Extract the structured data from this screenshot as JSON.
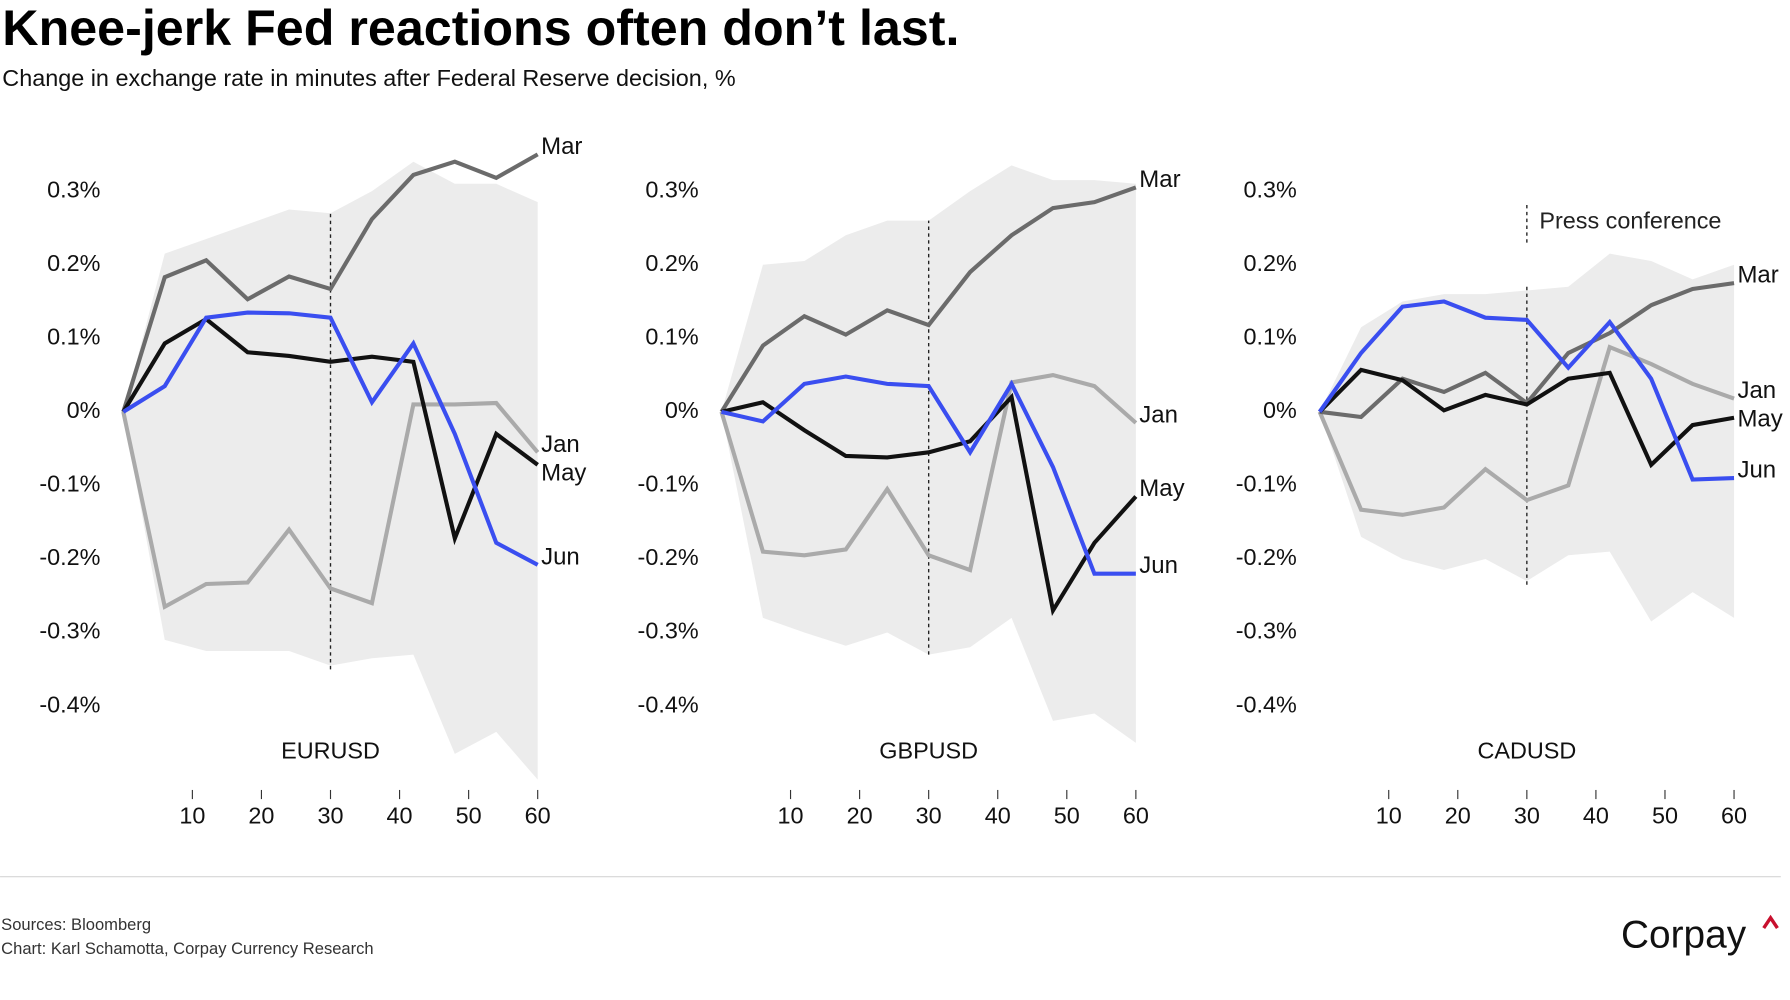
{
  "title": "Knee-jerk Fed reactions often don’t last.",
  "subtitle": "Change in exchange rate in minutes after Federal Reserve decision, %",
  "sources": "Sources: Bloomberg",
  "credit": "Chart: Karl Schamotta, Corpay Currency Research",
  "logo": "Corpay",
  "chart_data": [
    {
      "type": "line",
      "title": "EURUSD",
      "x": [
        0,
        6,
        12,
        18,
        24,
        30,
        36,
        42,
        48,
        54,
        60
      ],
      "xlim": [
        0,
        60
      ],
      "xticks": [
        10,
        20,
        30,
        40,
        50,
        60
      ],
      "ylim": [
        -0.5,
        0.4
      ],
      "yticks": [
        {
          "value": -0.4,
          "label": "-0.4%"
        },
        {
          "value": -0.3,
          "label": "-0.3%"
        },
        {
          "value": -0.2,
          "label": "-0.2%"
        },
        {
          "value": -0.1,
          "label": "-0.1%"
        },
        {
          "value": 0,
          "label": "0%"
        },
        {
          "value": 0.1,
          "label": "0.1%"
        },
        {
          "value": 0.2,
          "label": "0.2%"
        },
        {
          "value": 0.3,
          "label": "0.3%"
        }
      ],
      "band": {
        "color": "#ececec",
        "upper": [
          0,
          0.215,
          0.235,
          0.255,
          0.275,
          0.27,
          0.3,
          0.34,
          0.31,
          0.31,
          0.285
        ],
        "lower": [
          0,
          -0.31,
          -0.325,
          -0.325,
          -0.325,
          -0.345,
          -0.335,
          -0.33,
          -0.465,
          -0.435,
          -0.5
        ]
      },
      "marker": {
        "x": 30,
        "y": [
          -0.35,
          0.27
        ]
      },
      "series": [
        {
          "name": "Jan",
          "color": "#aaaaaa",
          "values": [
            0,
            -0.265,
            -0.234,
            -0.232,
            -0.16,
            -0.24,
            -0.26,
            0.01,
            0.01,
            0.012,
            -0.055
          ]
        },
        {
          "name": "Mar",
          "color": "#6b6b6b",
          "values": [
            0,
            0.183,
            0.206,
            0.153,
            0.184,
            0.167,
            0.262,
            0.322,
            0.34,
            0.318,
            0.35
          ]
        },
        {
          "name": "May",
          "color": "#111111",
          "values": [
            0,
            0.093,
            0.126,
            0.081,
            0.076,
            0.068,
            0.075,
            0.068,
            -0.172,
            -0.03,
            -0.072
          ]
        },
        {
          "name": "Jun",
          "color": "#3a4ef0",
          "values": [
            0,
            0.035,
            0.128,
            0.135,
            0.134,
            0.128,
            0.013,
            0.093,
            -0.03,
            -0.178,
            -0.208
          ]
        }
      ]
    },
    {
      "type": "line",
      "title": "GBPUSD",
      "x": [
        0,
        6,
        12,
        18,
        24,
        30,
        36,
        42,
        48,
        54,
        60
      ],
      "xlim": [
        0,
        60
      ],
      "xticks": [
        10,
        20,
        30,
        40,
        50,
        60
      ],
      "ylim": [
        -0.5,
        0.4
      ],
      "yticks": [
        {
          "value": -0.4,
          "label": "-0.4%"
        },
        {
          "value": -0.3,
          "label": "-0.3%"
        },
        {
          "value": -0.2,
          "label": "-0.2%"
        },
        {
          "value": -0.1,
          "label": "-0.1%"
        },
        {
          "value": 0,
          "label": "0%"
        },
        {
          "value": 0.1,
          "label": "0.1%"
        },
        {
          "value": 0.2,
          "label": "0.2%"
        },
        {
          "value": 0.3,
          "label": "0.3%"
        }
      ],
      "band": {
        "color": "#ececec",
        "upper": [
          0,
          0.2,
          0.205,
          0.24,
          0.26,
          0.26,
          0.3,
          0.335,
          0.315,
          0.315,
          0.31
        ],
        "lower": [
          0,
          -0.28,
          -0.3,
          -0.318,
          -0.3,
          -0.33,
          -0.32,
          -0.28,
          -0.42,
          -0.41,
          -0.45
        ]
      },
      "marker": {
        "x": 30,
        "y": [
          -0.33,
          0.26
        ]
      },
      "series": [
        {
          "name": "Jan",
          "color": "#aaaaaa",
          "values": [
            0,
            -0.19,
            -0.195,
            -0.187,
            -0.105,
            -0.195,
            -0.215,
            0.04,
            0.05,
            0.035,
            -0.015
          ]
        },
        {
          "name": "Mar",
          "color": "#6b6b6b",
          "values": [
            0,
            0.09,
            0.13,
            0.105,
            0.138,
            0.118,
            0.19,
            0.24,
            0.277,
            0.285,
            0.305
          ]
        },
        {
          "name": "May",
          "color": "#111111",
          "values": [
            0,
            0.013,
            -0.025,
            -0.06,
            -0.062,
            -0.055,
            -0.04,
            0.02,
            -0.27,
            -0.178,
            -0.115
          ]
        },
        {
          "name": "Jun",
          "color": "#3a4ef0",
          "values": [
            0,
            -0.013,
            0.038,
            0.048,
            0.038,
            0.035,
            -0.055,
            0.038,
            -0.075,
            -0.22,
            -0.22
          ]
        }
      ]
    },
    {
      "type": "line",
      "title": "CADUSD",
      "x": [
        0,
        6,
        12,
        18,
        24,
        30,
        36,
        42,
        48,
        54,
        60
      ],
      "xlim": [
        0,
        60
      ],
      "xticks": [
        10,
        20,
        30,
        40,
        50,
        60
      ],
      "ylim": [
        -0.5,
        0.4
      ],
      "yticks": [
        {
          "value": -0.4,
          "label": "-0.4%"
        },
        {
          "value": -0.3,
          "label": "-0.3%"
        },
        {
          "value": -0.2,
          "label": "-0.2%"
        },
        {
          "value": -0.1,
          "label": "-0.1%"
        },
        {
          "value": 0,
          "label": "0%"
        },
        {
          "value": 0.1,
          "label": "0.1%"
        },
        {
          "value": 0.2,
          "label": "0.2%"
        },
        {
          "value": 0.3,
          "label": "0.3%"
        }
      ],
      "band": {
        "color": "#ececec",
        "upper": [
          0,
          0.115,
          0.15,
          0.16,
          0.16,
          0.165,
          0.17,
          0.215,
          0.205,
          0.18,
          0.2
        ],
        "lower": [
          0,
          -0.17,
          -0.2,
          -0.215,
          -0.2,
          -0.23,
          -0.195,
          -0.19,
          -0.285,
          -0.245,
          -0.28
        ]
      },
      "marker": {
        "x": 30,
        "y": [
          -0.235,
          0.17
        ]
      },
      "annotation": {
        "text": "Press conference",
        "x": 30,
        "y": [
          0.23,
          0.285
        ]
      },
      "series": [
        {
          "name": "Jan",
          "color": "#aaaaaa",
          "values": [
            0,
            -0.133,
            -0.14,
            -0.13,
            -0.078,
            -0.12,
            -0.1,
            0.088,
            0.065,
            0.038,
            0.018
          ]
        },
        {
          "name": "Mar",
          "color": "#6b6b6b",
          "values": [
            0,
            -0.007,
            0.045,
            0.027,
            0.053,
            0.012,
            0.08,
            0.107,
            0.145,
            0.167,
            0.175
          ]
        },
        {
          "name": "May",
          "color": "#111111",
          "values": [
            0,
            0.057,
            0.043,
            0.002,
            0.023,
            0.01,
            0.045,
            0.053,
            -0.072,
            -0.018,
            -0.008
          ]
        },
        {
          "name": "Jun",
          "color": "#3a4ef0",
          "values": [
            0,
            0.08,
            0.143,
            0.15,
            0.128,
            0.125,
            0.06,
            0.122,
            0.045,
            -0.092,
            -0.09
          ]
        }
      ]
    }
  ]
}
